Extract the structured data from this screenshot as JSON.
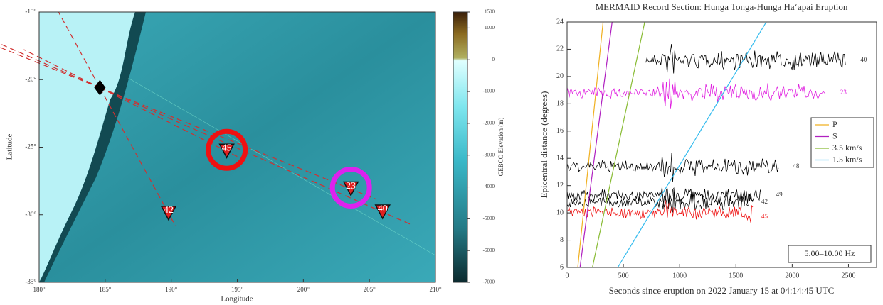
{
  "chart_data": [
    {
      "type": "map",
      "xlabel": "Longitude",
      "ylabel": "Latitude",
      "xlim": [
        180,
        210
      ],
      "ylim": [
        -35,
        -15
      ],
      "xticks": [
        {
          "value": 180,
          "label": "180°"
        },
        {
          "value": 185,
          "label": "185°"
        },
        {
          "value": 190,
          "label": "190°"
        },
        {
          "value": 195,
          "label": "195°"
        },
        {
          "value": 200,
          "label": "200°"
        },
        {
          "value": 205,
          "label": "205°"
        },
        {
          "value": 210,
          "label": "210°"
        }
      ],
      "yticks": [
        {
          "value": -15,
          "label": "-15°"
        },
        {
          "value": -20,
          "label": "-20°"
        },
        {
          "value": -25,
          "label": "-25°"
        },
        {
          "value": -30,
          "label": "-30°"
        },
        {
          "value": -35,
          "label": "-35°"
        }
      ],
      "event": {
        "x": 184.6,
        "y": -20.6
      },
      "stations": [
        {
          "label": "42",
          "x": 189.8,
          "y": -29.9
        },
        {
          "label": "45",
          "x": 194.2,
          "y": -25.3,
          "ring": "#ee1111"
        },
        {
          "label": "23",
          "x": 203.6,
          "y": -28.1,
          "ring": "#dd22ee"
        },
        {
          "label": "40",
          "x": 206.0,
          "y": -29.8
        }
      ],
      "colorbar": {
        "label": "GEBCO Elevation (m)",
        "lim": [
          -7000,
          1500
        ],
        "ticks": [
          1500,
          1000,
          0,
          -1000,
          -2000,
          -3000,
          -4000,
          -5000,
          -6000,
          -7000
        ]
      }
    },
    {
      "type": "line",
      "title": "MERMAID Record Section: Hunga Tonga-Hunga Ha‘apai Eruption",
      "xlabel": "Seconds since eruption on 2022 January 15 at 04:14:45 UTC",
      "ylabel": "Epicentral distance (degrees)",
      "xlim": [
        0,
        2750
      ],
      "ylim": [
        6,
        24
      ],
      "xticks": [
        0,
        500,
        1000,
        1500,
        2000,
        2500
      ],
      "yticks": [
        6,
        8,
        10,
        12,
        14,
        16,
        18,
        20,
        22,
        24
      ],
      "legend": "right",
      "series": [
        {
          "name": "P",
          "color": "#f0b020",
          "x": [
            95,
            320
          ],
          "values": [
            6,
            24
          ]
        },
        {
          "name": "S",
          "color": "#b020c0",
          "x": [
            115,
            400
          ],
          "values": [
            6,
            24
          ]
        },
        {
          "name": "3.5 km/s",
          "color": "#88bb33",
          "x": [
            225,
            690
          ],
          "values": [
            6,
            24
          ]
        },
        {
          "name": "1.5 km/s",
          "color": "#33bbee",
          "x": [
            450,
            1770
          ],
          "values": [
            6,
            24
          ]
        }
      ],
      "traces": [
        {
          "label": "40",
          "color": "#000000",
          "distance": 21.2,
          "start": 700,
          "end": 2480
        },
        {
          "label": "23",
          "color": "#e020e0",
          "distance": 18.8,
          "start": 0,
          "end": 2300
        },
        {
          "label": "48",
          "color": "#000000",
          "distance": 13.4,
          "start": 0,
          "end": 1880
        },
        {
          "label": "49",
          "color": "#000000",
          "distance": 11.3,
          "start": 0,
          "end": 1730
        },
        {
          "label": "42",
          "color": "#000000",
          "distance": 10.8,
          "start": 0,
          "end": 1650
        },
        {
          "label": "45",
          "color": "#ee1111",
          "distance": 10.0,
          "start": 0,
          "end": 1650
        }
      ],
      "annotation": "5.00–10.00 Hz"
    }
  ]
}
